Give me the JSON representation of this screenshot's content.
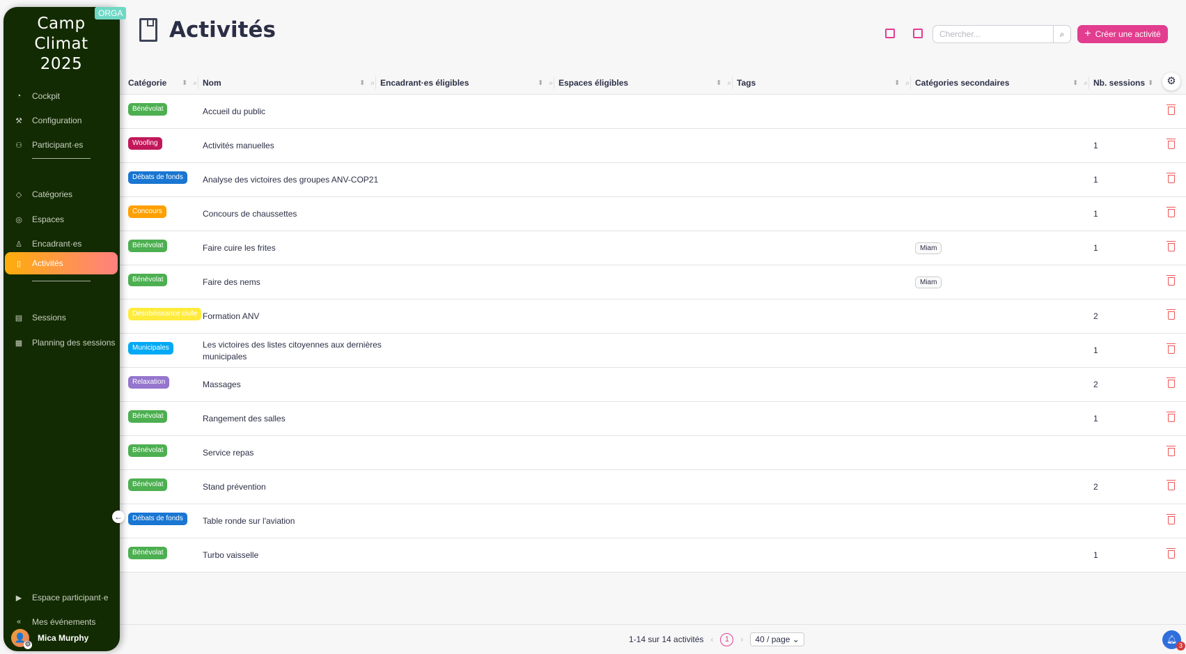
{
  "sidebar": {
    "brand": "Camp Climat 2025",
    "badge": "ORGA",
    "items": [
      {
        "label": "Cockpit",
        "icon": "gauge-icon"
      },
      {
        "label": "Configuration",
        "icon": "wrench-icon"
      },
      {
        "label": "Participant·es",
        "icon": "users-icon"
      },
      {
        "label": "Catégories",
        "icon": "tag-icon"
      },
      {
        "label": "Espaces",
        "icon": "location-icon"
      },
      {
        "label": "Encadrant·es",
        "icon": "user-icon"
      },
      {
        "label": "Activités",
        "icon": "book-icon",
        "active": true
      },
      {
        "label": "Sessions",
        "icon": "calendar-icon"
      },
      {
        "label": "Planning des sessions",
        "icon": "planning-icon"
      },
      {
        "label": "Espace participant·e",
        "icon": "play-icon"
      },
      {
        "label": "Mes événements",
        "icon": "double-chevron-left-icon"
      }
    ],
    "user": "Mica Murphy"
  },
  "header": {
    "title": "Activités",
    "search_placeholder": "Chercher...",
    "create_label": "Créer une activité",
    "accent": "#e23d8f"
  },
  "table": {
    "columns": [
      "Catégorie",
      "Nom",
      "Encadrant·es éligibles",
      "Espaces éligibles",
      "Tags",
      "Catégories secondaires",
      "Nb. sessions"
    ],
    "rows": [
      {
        "category": "Bénévolat",
        "color": "#4caf50",
        "name": "Accueil du public",
        "secondary": "",
        "sessions": ""
      },
      {
        "category": "Woofing",
        "color": "#c2185b",
        "name": "Activités manuelles",
        "secondary": "",
        "sessions": "1"
      },
      {
        "category": "Débats de fonds",
        "color": "#1976d2",
        "name": "Analyse des victoires des groupes ANV-COP21",
        "secondary": "",
        "sessions": "1"
      },
      {
        "category": "Concours",
        "color": "#ffa000",
        "name": "Concours de chaussettes",
        "secondary": "",
        "sessions": "1"
      },
      {
        "category": "Bénévolat",
        "color": "#4caf50",
        "name": "Faire cuire les frites",
        "secondary": "Miam",
        "sessions": "1"
      },
      {
        "category": "Bénévolat",
        "color": "#4caf50",
        "name": "Faire des nems",
        "secondary": "Miam",
        "sessions": ""
      },
      {
        "category": "Désobéissance civile",
        "color": "#ffeb3b",
        "name": "Formation ANV",
        "secondary": "",
        "sessions": "2"
      },
      {
        "category": "Municipales",
        "color": "#03a9f4",
        "name": "Les victoires des listes citoyennes aux dernières municipales",
        "secondary": "",
        "sessions": "1"
      },
      {
        "category": "Relaxation",
        "color": "#9575cd",
        "name": "Massages",
        "secondary": "",
        "sessions": "2"
      },
      {
        "category": "Bénévolat",
        "color": "#4caf50",
        "name": "Rangement des salles",
        "secondary": "",
        "sessions": "1"
      },
      {
        "category": "Bénévolat",
        "color": "#4caf50",
        "name": "Service repas",
        "secondary": "",
        "sessions": ""
      },
      {
        "category": "Bénévolat",
        "color": "#4caf50",
        "name": "Stand prévention",
        "secondary": "",
        "sessions": "2"
      },
      {
        "category": "Débats de fonds",
        "color": "#1976d2",
        "name": "Table ronde sur l'aviation",
        "secondary": "",
        "sessions": ""
      },
      {
        "category": "Bénévolat",
        "color": "#4caf50",
        "name": "Turbo vaisselle",
        "secondary": "",
        "sessions": "1"
      }
    ]
  },
  "footer": {
    "summary": "1-14 sur 14 activités",
    "page": "1",
    "page_size": "40 / page",
    "notifications": "3"
  }
}
